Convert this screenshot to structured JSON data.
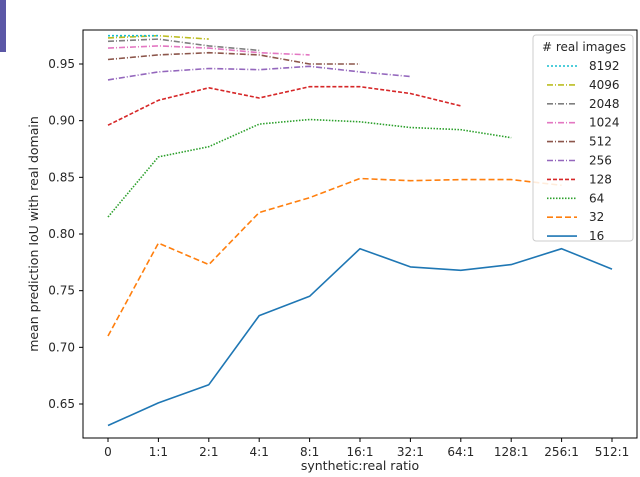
{
  "chart_data": {
    "type": "line",
    "xlabel": "synthetic:real ratio",
    "ylabel": "mean prediction IoU with real domain",
    "categories": [
      "0",
      "1:1",
      "2:1",
      "4:1",
      "8:1",
      "16:1",
      "32:1",
      "64:1",
      "128:1",
      "256:1",
      "512:1"
    ],
    "ylim": [
      0.62,
      0.98
    ],
    "yticks": [
      "0.65",
      "0.70",
      "0.75",
      "0.80",
      "0.85",
      "0.90",
      "0.95"
    ],
    "grid": false,
    "legend": {
      "title": "# real images",
      "placement": "top-right"
    },
    "series": [
      {
        "name": "8192",
        "color": "#17becf",
        "dash": "2,2",
        "values": [
          0.975,
          0.975,
          null,
          null,
          null,
          null,
          null,
          null,
          null,
          null,
          null
        ]
      },
      {
        "name": "4096",
        "color": "#bcbd22",
        "dash": "6,2,1,2",
        "values": [
          0.973,
          0.975,
          0.972,
          null,
          null,
          null,
          null,
          null,
          null,
          null,
          null
        ]
      },
      {
        "name": "2048",
        "color": "#7f7f7f",
        "dash": "6,2,1,2",
        "values": [
          0.97,
          0.972,
          0.966,
          0.962,
          null,
          null,
          null,
          null,
          null,
          null,
          null
        ]
      },
      {
        "name": "1024",
        "color": "#e377c2",
        "dash": "6,2,1,2",
        "values": [
          0.964,
          0.966,
          0.964,
          0.96,
          0.958,
          null,
          null,
          null,
          null,
          null,
          null
        ]
      },
      {
        "name": "512",
        "color": "#8c564b",
        "dash": "6,2,1,2",
        "values": [
          0.954,
          0.958,
          0.96,
          0.958,
          0.95,
          0.95,
          null,
          null,
          null,
          null,
          null
        ]
      },
      {
        "name": "256",
        "color": "#9467bd",
        "dash": "6,2,1,2",
        "values": [
          0.936,
          0.943,
          0.946,
          0.945,
          0.948,
          0.943,
          0.939,
          null,
          null,
          null,
          null
        ]
      },
      {
        "name": "128",
        "color": "#d62728",
        "dash": "4,2",
        "values": [
          0.896,
          0.918,
          0.929,
          0.92,
          0.93,
          0.93,
          0.924,
          0.913,
          null,
          null,
          null
        ]
      },
      {
        "name": "64",
        "color": "#2ca02c",
        "dash": "1.5,1.5",
        "values": [
          0.815,
          0.868,
          0.877,
          0.897,
          0.901,
          0.899,
          0.894,
          0.892,
          0.885,
          null,
          null
        ]
      },
      {
        "name": "32",
        "color": "#ff7f0e",
        "dash": "6,3",
        "values": [
          0.71,
          0.792,
          0.773,
          0.819,
          0.832,
          0.849,
          0.847,
          0.848,
          0.848,
          0.843,
          null
        ]
      },
      {
        "name": "16",
        "color": "#1f77b4",
        "dash": "",
        "values": [
          0.631,
          0.651,
          0.667,
          0.728,
          0.745,
          0.787,
          0.771,
          0.768,
          0.773,
          0.787,
          0.769
        ]
      }
    ]
  }
}
